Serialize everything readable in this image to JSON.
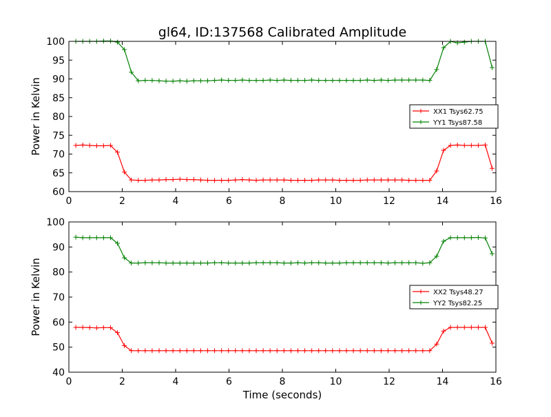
{
  "figure": {
    "title": "gl64, ID:137568 Calibrated Amplitude",
    "xlabel": "Time (seconds)"
  },
  "colors": {
    "red": "#ff0000",
    "green": "#008000"
  },
  "chart_data": [
    {
      "type": "line",
      "title": "gl64, ID:137568 Calibrated Amplitude",
      "xlabel": "",
      "ylabel": "Power in Kelvin",
      "xlim": [
        0,
        16
      ],
      "ylim": [
        60,
        100
      ],
      "xticks": [
        0,
        2,
        4,
        6,
        8,
        10,
        12,
        14,
        16
      ],
      "yticks": [
        60,
        65,
        70,
        75,
        80,
        85,
        90,
        95,
        100
      ],
      "grid": false,
      "legend": "center-right",
      "x": [
        0.26,
        0.52,
        0.78,
        1.04,
        1.3,
        1.56,
        1.82,
        2.08,
        2.34,
        2.6,
        2.86,
        3.12,
        3.38,
        3.64,
        3.9,
        4.16,
        4.42,
        4.68,
        4.94,
        5.2,
        5.46,
        5.72,
        5.98,
        6.24,
        6.5,
        6.76,
        7.02,
        7.28,
        7.54,
        7.8,
        8.06,
        8.32,
        8.58,
        8.84,
        9.1,
        9.36,
        9.62,
        9.88,
        10.14,
        10.4,
        10.66,
        10.92,
        11.18,
        11.44,
        11.7,
        11.96,
        12.22,
        12.48,
        12.74,
        13.0,
        13.26,
        13.52,
        13.78,
        14.04,
        14.3,
        14.56,
        14.82,
        15.08,
        15.34,
        15.6,
        15.86
      ],
      "series": [
        {
          "name": "XX1 Tsys62.75",
          "color": "#ff0000",
          "values": [
            72.3,
            72.4,
            72.3,
            72.2,
            72.2,
            72.3,
            70.5,
            65.2,
            63.1,
            63.0,
            63.0,
            63.1,
            63.1,
            63.2,
            63.2,
            63.3,
            63.2,
            63.2,
            63.1,
            63.0,
            63.0,
            63.0,
            63.0,
            63.1,
            63.2,
            63.1,
            63.0,
            63.1,
            63.1,
            63.1,
            63.1,
            63.0,
            63.0,
            63.0,
            63.0,
            63.1,
            63.1,
            63.1,
            63.0,
            63.0,
            63.0,
            63.0,
            63.1,
            63.1,
            63.1,
            63.1,
            63.1,
            63.1,
            63.0,
            63.0,
            63.0,
            63.0,
            65.5,
            71.0,
            72.3,
            72.4,
            72.3,
            72.3,
            72.3,
            72.4,
            66.2
          ]
        },
        {
          "name": "YY1 Tsys87.58",
          "color": "#008000",
          "values": [
            100.0,
            100.0,
            100.0,
            100.0,
            100.1,
            100.1,
            99.8,
            97.8,
            91.8,
            89.5,
            89.6,
            89.6,
            89.5,
            89.4,
            89.4,
            89.5,
            89.4,
            89.5,
            89.5,
            89.5,
            89.6,
            89.7,
            89.6,
            89.6,
            89.7,
            89.6,
            89.6,
            89.6,
            89.7,
            89.6,
            89.7,
            89.6,
            89.6,
            89.6,
            89.7,
            89.6,
            89.6,
            89.6,
            89.6,
            89.6,
            89.6,
            89.6,
            89.7,
            89.6,
            89.7,
            89.6,
            89.7,
            89.7,
            89.7,
            89.7,
            89.7,
            89.6,
            92.5,
            98.3,
            100.0,
            99.6,
            99.8,
            100.0,
            100.0,
            100.0,
            93.0
          ]
        }
      ]
    },
    {
      "type": "line",
      "title": "",
      "xlabel": "Time (seconds)",
      "ylabel": "Power in Kelvin",
      "xlim": [
        0,
        16
      ],
      "ylim": [
        40,
        100
      ],
      "xticks": [
        0,
        2,
        4,
        6,
        8,
        10,
        12,
        14,
        16
      ],
      "yticks": [
        40,
        50,
        60,
        70,
        80,
        90,
        100
      ],
      "grid": false,
      "legend": "center-right",
      "x": [
        0.26,
        0.52,
        0.78,
        1.04,
        1.3,
        1.56,
        1.82,
        2.08,
        2.34,
        2.6,
        2.86,
        3.12,
        3.38,
        3.64,
        3.9,
        4.16,
        4.42,
        4.68,
        4.94,
        5.2,
        5.46,
        5.72,
        5.98,
        6.24,
        6.5,
        6.76,
        7.02,
        7.28,
        7.54,
        7.8,
        8.06,
        8.32,
        8.58,
        8.84,
        9.1,
        9.36,
        9.62,
        9.88,
        10.14,
        10.4,
        10.66,
        10.92,
        11.18,
        11.44,
        11.7,
        11.96,
        12.22,
        12.48,
        12.74,
        13.0,
        13.26,
        13.52,
        13.78,
        14.04,
        14.3,
        14.56,
        14.82,
        15.08,
        15.34,
        15.6,
        15.86
      ],
      "series": [
        {
          "name": "XX2 Tsys48.27",
          "color": "#ff0000",
          "values": [
            57.9,
            57.9,
            57.8,
            57.7,
            57.8,
            57.8,
            55.8,
            50.6,
            48.6,
            48.6,
            48.6,
            48.6,
            48.6,
            48.6,
            48.6,
            48.6,
            48.6,
            48.6,
            48.6,
            48.6,
            48.6,
            48.6,
            48.6,
            48.6,
            48.6,
            48.6,
            48.6,
            48.6,
            48.6,
            48.6,
            48.6,
            48.6,
            48.6,
            48.6,
            48.6,
            48.6,
            48.6,
            48.6,
            48.6,
            48.6,
            48.6,
            48.6,
            48.6,
            48.6,
            48.6,
            48.6,
            48.6,
            48.6,
            48.6,
            48.6,
            48.6,
            48.6,
            51.2,
            56.4,
            57.9,
            57.9,
            57.9,
            57.9,
            57.9,
            57.9,
            51.6
          ]
        },
        {
          "name": "YY2 Tsys82.25",
          "color": "#008000",
          "values": [
            93.9,
            93.7,
            93.7,
            93.7,
            93.7,
            93.7,
            91.5,
            85.7,
            83.6,
            83.6,
            83.7,
            83.7,
            83.7,
            83.6,
            83.6,
            83.6,
            83.6,
            83.6,
            83.6,
            83.6,
            83.7,
            83.7,
            83.6,
            83.6,
            83.6,
            83.6,
            83.7,
            83.7,
            83.7,
            83.7,
            83.6,
            83.6,
            83.7,
            83.6,
            83.7,
            83.7,
            83.6,
            83.6,
            83.6,
            83.7,
            83.7,
            83.7,
            83.7,
            83.7,
            83.7,
            83.6,
            83.7,
            83.7,
            83.7,
            83.7,
            83.5,
            83.7,
            86.3,
            92.3,
            93.7,
            93.7,
            93.7,
            93.7,
            93.8,
            93.6,
            87.3
          ]
        }
      ]
    }
  ]
}
